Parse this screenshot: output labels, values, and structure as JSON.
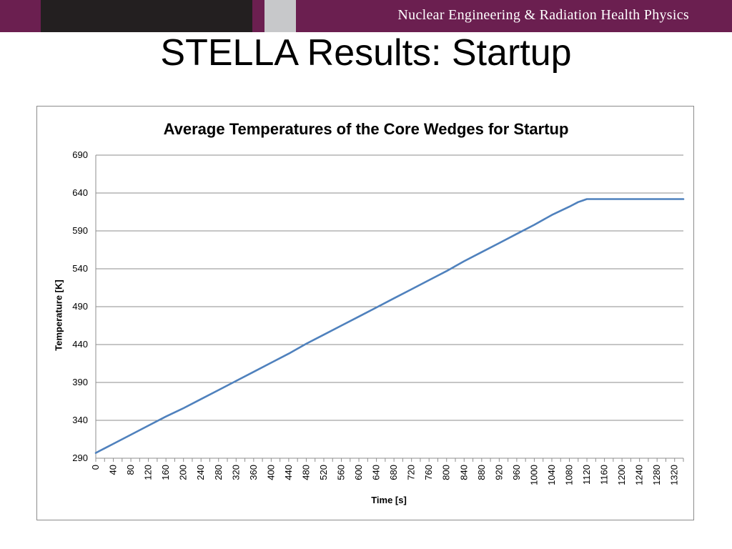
{
  "header": {
    "org_text": "Nuclear Engineering & Radiation Health Physics",
    "colors": {
      "bar": "#6b1f50",
      "dark_block": "#231f20",
      "grey_block": "#c7c8ca"
    }
  },
  "slide": {
    "title": "STELLA Results: Startup"
  },
  "chart_data": {
    "type": "line",
    "title": "Average Temperatures of the Core Wedges for Startup",
    "xlabel": "Time [s]",
    "ylabel": "Temperature [K]",
    "xlim": [
      0,
      1340
    ],
    "ylim": [
      290,
      690
    ],
    "x_ticks": [
      "0",
      "40",
      "80",
      "120",
      "160",
      "200",
      "240",
      "280",
      "320",
      "360",
      "400",
      "440",
      "480",
      "520",
      "560",
      "600",
      "640",
      "680",
      "720",
      "760",
      "800",
      "840",
      "880",
      "920",
      "960",
      "1000",
      "1040",
      "1080",
      "1120",
      "1160",
      "1200",
      "1240",
      "1280",
      "1320"
    ],
    "y_ticks": [
      "290",
      "340",
      "390",
      "440",
      "490",
      "540",
      "590",
      "640",
      "690"
    ],
    "grid": true,
    "legend": "none",
    "series": [
      {
        "color": "#4f81bd",
        "x": [
          0,
          10,
          20,
          40,
          80,
          120,
          160,
          200,
          240,
          280,
          320,
          360,
          400,
          440,
          480,
          520,
          560,
          600,
          640,
          680,
          720,
          760,
          800,
          840,
          880,
          920,
          960,
          1000,
          1040,
          1080,
          1100,
          1110,
          1115,
          1120,
          1124,
          1130,
          1160,
          1200,
          1240,
          1280,
          1320,
          1340
        ],
        "y": [
          297,
          300,
          303,
          309,
          321,
          333,
          345,
          356,
          368,
          380,
          392,
          404,
          416,
          428,
          441,
          453,
          465,
          477,
          489,
          501,
          513,
          525,
          537,
          550,
          562,
          574,
          586,
          598,
          611,
          622,
          628,
          630,
          631,
          632,
          632,
          632,
          632,
          632,
          632,
          632,
          632,
          632
        ]
      }
    ]
  }
}
